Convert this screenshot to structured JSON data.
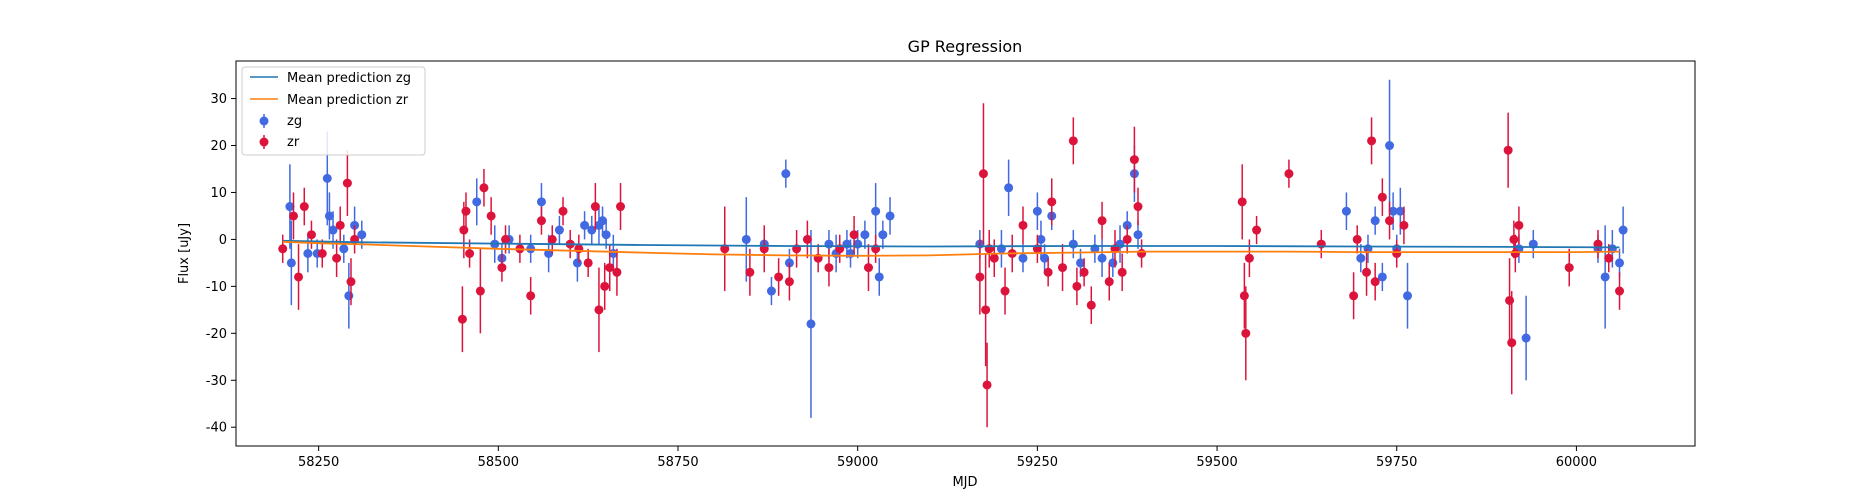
{
  "chart_data": {
    "type": "scatter",
    "title": "GP Regression",
    "xlabel": "MJD",
    "ylabel": "Flux [uJy]",
    "xlim": [
      58135,
      60165
    ],
    "ylim": [
      -44,
      38
    ],
    "xticks": [
      58250,
      58500,
      58750,
      59000,
      59250,
      59500,
      59750,
      60000
    ],
    "yticks": [
      -40,
      -30,
      -20,
      -10,
      0,
      10,
      20,
      30
    ],
    "grid": false,
    "legend": {
      "placement": "top-left",
      "entries": [
        "Mean prediction zg",
        "Mean prediction zr",
        "zg",
        "zr"
      ]
    },
    "lines": [
      {
        "name": "Mean prediction zg",
        "color": "#1f77b4",
        "x": [
          58200,
          58300,
          58500,
          58700,
          58900,
          59100,
          59300,
          59500,
          59700,
          59900,
          60060
        ],
        "y": [
          -0.3,
          -0.6,
          -0.9,
          -1.2,
          -1.4,
          -1.5,
          -1.4,
          -1.4,
          -1.5,
          -1.6,
          -1.7
        ]
      },
      {
        "name": "Mean prediction zr",
        "color": "#ff7f0e",
        "x": [
          58200,
          58250,
          58300,
          58400,
          58500,
          58600,
          58700,
          58800,
          58900,
          59000,
          59100,
          59200,
          59300,
          59400,
          59500,
          59600,
          59700,
          59800,
          59900,
          60000,
          60060
        ],
        "y": [
          -0.5,
          -0.8,
          -1.0,
          -1.5,
          -2.0,
          -2.4,
          -2.8,
          -3.2,
          -3.4,
          -3.5,
          -3.4,
          -3.0,
          -2.8,
          -2.6,
          -2.6,
          -2.6,
          -2.7,
          -2.7,
          -2.7,
          -2.7,
          -2.6
        ]
      }
    ],
    "series": [
      {
        "name": "zg",
        "color": "#4169e1",
        "points": [
          [
            58210,
            7,
            9
          ],
          [
            58212,
            -5,
            9
          ],
          [
            58235,
            -3,
            4
          ],
          [
            58248,
            -3,
            3
          ],
          [
            58262,
            13,
            10
          ],
          [
            58265,
            5,
            5
          ],
          [
            58270,
            2,
            4
          ],
          [
            58285,
            -2,
            3
          ],
          [
            58292,
            -12,
            7
          ],
          [
            58300,
            3,
            4
          ],
          [
            58310,
            1,
            3
          ],
          [
            58470,
            8,
            5
          ],
          [
            58495,
            -1,
            4
          ],
          [
            58505,
            -4,
            3
          ],
          [
            58515,
            0,
            3
          ],
          [
            58545,
            -2,
            3
          ],
          [
            58560,
            8,
            4
          ],
          [
            58570,
            -3,
            4
          ],
          [
            58585,
            2,
            3
          ],
          [
            58610,
            -5,
            4
          ],
          [
            58620,
            3,
            3
          ],
          [
            58630,
            2,
            3
          ],
          [
            58640,
            3,
            4
          ],
          [
            58645,
            4,
            3
          ],
          [
            58650,
            1,
            3
          ],
          [
            58660,
            -3,
            4
          ],
          [
            58845,
            0,
            9
          ],
          [
            58870,
            -1,
            3
          ],
          [
            58880,
            -11,
            3
          ],
          [
            58900,
            14,
            3
          ],
          [
            58905,
            -5,
            3
          ],
          [
            58935,
            -18,
            20
          ],
          [
            58960,
            -1,
            3
          ],
          [
            58970,
            -3,
            4
          ],
          [
            58985,
            -1,
            3
          ],
          [
            58990,
            -3,
            3
          ],
          [
            59000,
            -1,
            3
          ],
          [
            59010,
            1,
            3
          ],
          [
            59025,
            6,
            6
          ],
          [
            59030,
            -8,
            4
          ],
          [
            59035,
            1,
            3
          ],
          [
            59045,
            5,
            4
          ],
          [
            59170,
            -1,
            3
          ],
          [
            59200,
            -2,
            4
          ],
          [
            59210,
            11,
            6
          ],
          [
            59230,
            -4,
            3
          ],
          [
            59250,
            6,
            4
          ],
          [
            59255,
            0,
            4
          ],
          [
            59260,
            -4,
            3
          ],
          [
            59270,
            5,
            3
          ],
          [
            59300,
            -1,
            3
          ],
          [
            59310,
            -5,
            3
          ],
          [
            59330,
            -2,
            3
          ],
          [
            59340,
            -4,
            4
          ],
          [
            59355,
            -5,
            3
          ],
          [
            59365,
            -1,
            4
          ],
          [
            59375,
            3,
            3
          ],
          [
            59385,
            14,
            6
          ],
          [
            59390,
            1,
            3
          ],
          [
            59680,
            6,
            4
          ],
          [
            59700,
            -4,
            3
          ],
          [
            59710,
            -2,
            3
          ],
          [
            59720,
            4,
            3
          ],
          [
            59730,
            -8,
            3
          ],
          [
            59740,
            20,
            14
          ],
          [
            59745,
            6,
            4
          ],
          [
            59750,
            -2,
            3
          ],
          [
            59755,
            6,
            5
          ],
          [
            59765,
            -12,
            7
          ],
          [
            59920,
            -2,
            3
          ],
          [
            59930,
            -21,
            9
          ],
          [
            59940,
            -1,
            3
          ],
          [
            60030,
            -2,
            3
          ],
          [
            60040,
            -8,
            11
          ],
          [
            60050,
            -2,
            4
          ],
          [
            60060,
            -5,
            3
          ],
          [
            60065,
            2,
            5
          ]
        ]
      },
      {
        "name": "zr",
        "color": "#dc143c",
        "points": [
          [
            58200,
            -2,
            3
          ],
          [
            58215,
            5,
            5
          ],
          [
            58222,
            -8,
            7
          ],
          [
            58230,
            7,
            4
          ],
          [
            58240,
            1,
            3
          ],
          [
            58255,
            -3,
            3
          ],
          [
            58275,
            -4,
            4
          ],
          [
            58280,
            3,
            4
          ],
          [
            58290,
            12,
            7
          ],
          [
            58295,
            -9,
            5
          ],
          [
            58300,
            0,
            3
          ],
          [
            58450,
            -17,
            7
          ],
          [
            58452,
            2,
            6
          ],
          [
            58455,
            6,
            4
          ],
          [
            58460,
            -3,
            3
          ],
          [
            58475,
            -11,
            9
          ],
          [
            58480,
            11,
            4
          ],
          [
            58490,
            5,
            4
          ],
          [
            58505,
            -6,
            3
          ],
          [
            58510,
            0,
            3
          ],
          [
            58530,
            -2,
            3
          ],
          [
            58545,
            -12,
            4
          ],
          [
            58560,
            4,
            3
          ],
          [
            58575,
            0,
            3
          ],
          [
            58590,
            6,
            3
          ],
          [
            58600,
            -1,
            3
          ],
          [
            58612,
            -2,
            3
          ],
          [
            58625,
            -5,
            3
          ],
          [
            58635,
            7,
            5
          ],
          [
            58640,
            -15,
            9
          ],
          [
            58648,
            -10,
            5
          ],
          [
            58655,
            -6,
            5
          ],
          [
            58665,
            -7,
            5
          ],
          [
            58670,
            7,
            5
          ],
          [
            58815,
            -2,
            9
          ],
          [
            58850,
            -7,
            5
          ],
          [
            58870,
            -2,
            5
          ],
          [
            58890,
            -8,
            4
          ],
          [
            58905,
            -9,
            4
          ],
          [
            58915,
            -2,
            4
          ],
          [
            58930,
            0,
            4
          ],
          [
            58945,
            -4,
            3
          ],
          [
            58960,
            -6,
            4
          ],
          [
            58975,
            -2,
            3
          ],
          [
            58995,
            1,
            4
          ],
          [
            59015,
            -6,
            5
          ],
          [
            59025,
            -2,
            3
          ],
          [
            59170,
            -8,
            8
          ],
          [
            59175,
            14,
            15
          ],
          [
            59178,
            -15,
            12
          ],
          [
            59180,
            -31,
            9
          ],
          [
            59183,
            -2,
            4
          ],
          [
            59190,
            -4,
            4
          ],
          [
            59205,
            -11,
            5
          ],
          [
            59215,
            -3,
            4
          ],
          [
            59230,
            3,
            4
          ],
          [
            59250,
            -2,
            3
          ],
          [
            59265,
            -7,
            3
          ],
          [
            59270,
            8,
            5
          ],
          [
            59285,
            -6,
            5
          ],
          [
            59300,
            21,
            5
          ],
          [
            59305,
            -10,
            4
          ],
          [
            59315,
            -7,
            3
          ],
          [
            59325,
            -14,
            4
          ],
          [
            59340,
            4,
            4
          ],
          [
            59350,
            -9,
            4
          ],
          [
            59358,
            -2,
            4
          ],
          [
            59368,
            -7,
            4
          ],
          [
            59375,
            0,
            3
          ],
          [
            59385,
            17,
            7
          ],
          [
            59390,
            7,
            4
          ],
          [
            59395,
            -3,
            3
          ],
          [
            59535,
            8,
            8
          ],
          [
            59538,
            -12,
            7
          ],
          [
            59540,
            -20,
            10
          ],
          [
            59545,
            -4,
            4
          ],
          [
            59555,
            2,
            3
          ],
          [
            59600,
            14,
            3
          ],
          [
            59645,
            -1,
            3
          ],
          [
            59690,
            -12,
            5
          ],
          [
            59695,
            0,
            3
          ],
          [
            59708,
            -7,
            5
          ],
          [
            59715,
            21,
            5
          ],
          [
            59720,
            -9,
            4
          ],
          [
            59730,
            9,
            4
          ],
          [
            59740,
            4,
            4
          ],
          [
            59750,
            -3,
            3
          ],
          [
            59760,
            3,
            4
          ],
          [
            59905,
            19,
            8
          ],
          [
            59907,
            -13,
            9
          ],
          [
            59910,
            -22,
            11
          ],
          [
            59913,
            0,
            4
          ],
          [
            59915,
            -3,
            4
          ],
          [
            59920,
            3,
            4
          ],
          [
            59990,
            -6,
            4
          ],
          [
            60030,
            -1,
            3
          ],
          [
            60045,
            -4,
            3
          ],
          [
            60060,
            -11,
            4
          ]
        ]
      }
    ]
  }
}
